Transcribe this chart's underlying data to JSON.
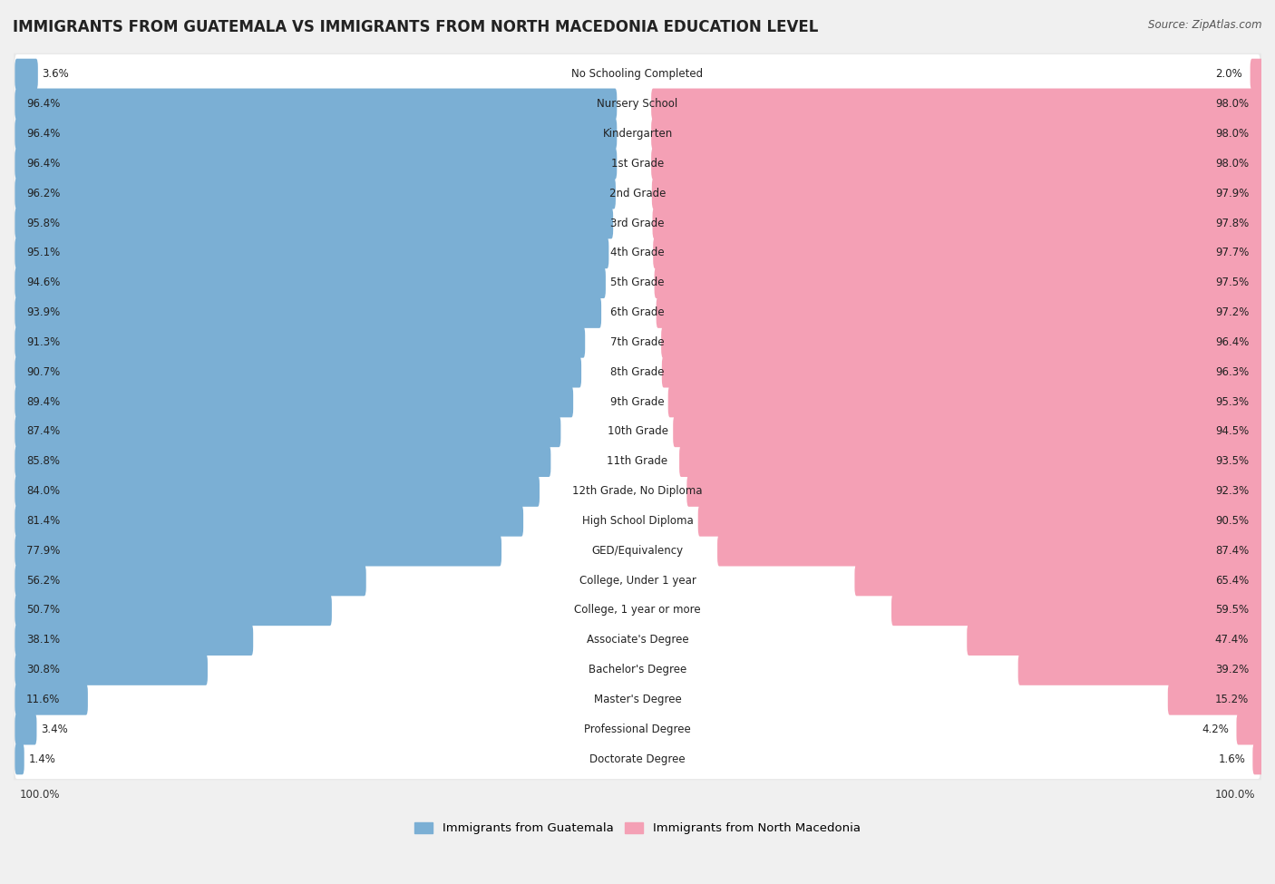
{
  "title": "IMMIGRANTS FROM GUATEMALA VS IMMIGRANTS FROM NORTH MACEDONIA EDUCATION LEVEL",
  "source": "Source: ZipAtlas.com",
  "categories": [
    "No Schooling Completed",
    "Nursery School",
    "Kindergarten",
    "1st Grade",
    "2nd Grade",
    "3rd Grade",
    "4th Grade",
    "5th Grade",
    "6th Grade",
    "7th Grade",
    "8th Grade",
    "9th Grade",
    "10th Grade",
    "11th Grade",
    "12th Grade, No Diploma",
    "High School Diploma",
    "GED/Equivalency",
    "College, Under 1 year",
    "College, 1 year or more",
    "Associate's Degree",
    "Bachelor's Degree",
    "Master's Degree",
    "Professional Degree",
    "Doctorate Degree"
  ],
  "guatemala": [
    3.6,
    96.4,
    96.4,
    96.4,
    96.2,
    95.8,
    95.1,
    94.6,
    93.9,
    91.3,
    90.7,
    89.4,
    87.4,
    85.8,
    84.0,
    81.4,
    77.9,
    56.2,
    50.7,
    38.1,
    30.8,
    11.6,
    3.4,
    1.4
  ],
  "north_macedonia": [
    2.0,
    98.0,
    98.0,
    98.0,
    97.9,
    97.8,
    97.7,
    97.5,
    97.2,
    96.4,
    96.3,
    95.3,
    94.5,
    93.5,
    92.3,
    90.5,
    87.4,
    65.4,
    59.5,
    47.4,
    39.2,
    15.2,
    4.2,
    1.6
  ],
  "guatemala_color": "#7bafd4",
  "north_macedonia_color": "#f4a0b5",
  "background_color": "#f0f0f0",
  "row_bg_color": "#e8e8e8",
  "bar_inner_bg": "#f8f8f8",
  "title_fontsize": 12,
  "value_fontsize": 8.5,
  "cat_fontsize": 8.5,
  "legend_label_guatemala": "Immigrants from Guatemala",
  "legend_label_north_macedonia": "Immigrants from North Macedonia"
}
